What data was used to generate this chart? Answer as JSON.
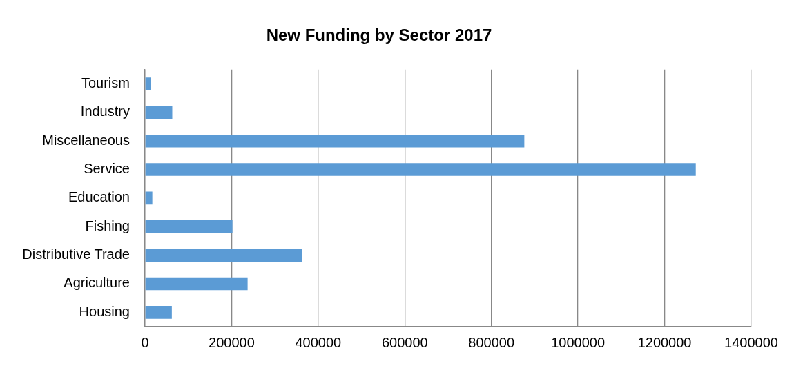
{
  "chart_data": {
    "type": "bar",
    "orientation": "horizontal",
    "title": "New Funding by Sector 2017",
    "categories": [
      "Tourism",
      "Industry",
      "Miscellaneous",
      "Service",
      "Education",
      "Fishing",
      "Distributive Trade",
      "Agriculture",
      "Housing"
    ],
    "values": [
      12800,
      63000,
      876000,
      1272000,
      17000,
      202000,
      362000,
      237000,
      62000
    ],
    "color": "#5b9bd5",
    "xlim": [
      0,
      1400000
    ],
    "xticks": [
      0,
      200000,
      400000,
      600000,
      800000,
      1000000,
      1200000,
      1400000
    ],
    "grid": "x",
    "legend": false
  }
}
